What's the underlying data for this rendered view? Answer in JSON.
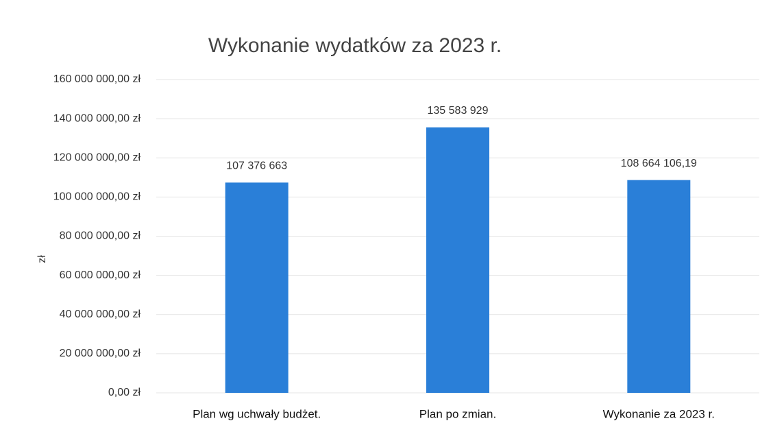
{
  "chart_data": {
    "type": "bar",
    "title": "Wykonanie wydatków za 2023 r.",
    "y_label": "zł",
    "categories": [
      "Plan wg uchwały budżet.",
      "Plan po zmian.",
      "Wykonanie za 2023 r."
    ],
    "values": [
      107376663,
      135583929,
      108664106.19
    ],
    "value_labels": [
      "107 376 663",
      "135 583 929",
      "108 664 106,19"
    ],
    "color": "#2a7fd8",
    "ylim": [
      0,
      160000000
    ],
    "yticks": [
      {
        "value": 0,
        "label": "0,00 zł"
      },
      {
        "value": 20000000,
        "label": "20 000 000,00 zł"
      },
      {
        "value": 40000000,
        "label": "40 000 000,00 zł"
      },
      {
        "value": 60000000,
        "label": "60 000 000,00 zł"
      },
      {
        "value": 80000000,
        "label": "80 000 000,00 zł"
      },
      {
        "value": 100000000,
        "label": "100 000 000,00 zł"
      },
      {
        "value": 120000000,
        "label": "120 000 000,00 zł"
      },
      {
        "value": 140000000,
        "label": "140 000 000,00 zł"
      },
      {
        "value": 160000000,
        "label": "160 000 000,00 zł"
      }
    ],
    "grid": true
  }
}
